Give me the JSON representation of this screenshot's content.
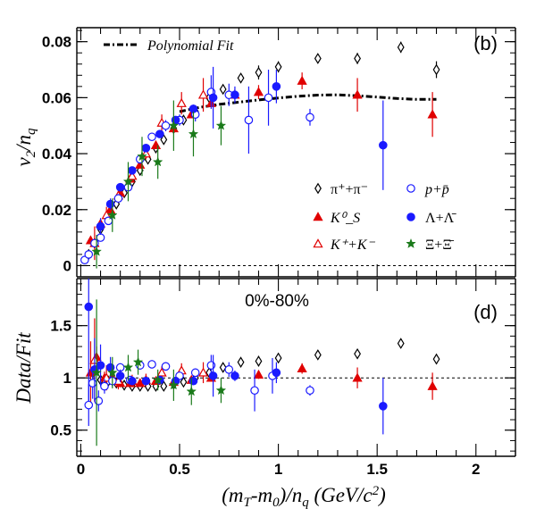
{
  "chart_data": [
    {
      "type": "scatter",
      "panel_label": "(b)",
      "ylabel": "v₂/n_q",
      "xlim": [
        -0.02,
        2.2
      ],
      "ylim": [
        -0.004,
        0.085
      ],
      "y_ticks": [
        0,
        0.02,
        0.04,
        0.06,
        0.08
      ],
      "y_tick_labels": [
        "0",
        "0.02",
        "0.04",
        "0.06",
        "0.08"
      ],
      "reference_line": 0,
      "fit": {
        "name": "Polynomial Fit",
        "x": [
          0.5,
          0.6,
          0.7,
          0.8,
          0.9,
          1.0,
          1.1,
          1.2,
          1.3,
          1.4,
          1.5,
          1.6,
          1.7,
          1.8
        ],
        "y": [
          0.055,
          0.0565,
          0.0576,
          0.0584,
          0.0592,
          0.0599,
          0.0605,
          0.0609,
          0.061,
          0.0607,
          0.0602,
          0.0597,
          0.0594,
          0.0594
        ]
      },
      "legend": {
        "position": "center-right",
        "entries": [
          {
            "label": "π⁺+π⁻",
            "marker": "open-diamond",
            "color": "#000000"
          },
          {
            "label": "p+p̄",
            "marker": "open-circle",
            "color": "#1a1aff"
          },
          {
            "label": "K⁰_S",
            "marker": "filled-triangle",
            "color": "#e00000"
          },
          {
            "label": "Λ+Λ̄",
            "marker": "filled-circle",
            "color": "#1a1aff"
          },
          {
            "label": "K⁺+K⁻",
            "marker": "open-triangle",
            "color": "#e00000"
          },
          {
            "label": "Ξ+Ξ̄",
            "marker": "star",
            "color": "#1a7a1a"
          }
        ]
      },
      "series": [
        {
          "marker": "open-diamond",
          "color": "#000000",
          "x": [
            0.04,
            0.07,
            0.1,
            0.14,
            0.18,
            0.22,
            0.26,
            0.3,
            0.34,
            0.38,
            0.42,
            0.47,
            0.52,
            0.58,
            0.65,
            0.72,
            0.81,
            0.9,
            1.0,
            1.2,
            1.4,
            1.62,
            1.8
          ],
          "y": [
            0.004,
            0.008,
            0.013,
            0.018,
            0.022,
            0.026,
            0.03,
            0.034,
            0.038,
            0.042,
            0.045,
            0.049,
            0.052,
            0.055,
            0.06,
            0.063,
            0.067,
            0.069,
            0.071,
            0.074,
            0.074,
            0.078,
            0.07
          ],
          "err": [
            0.0003,
            0.0003,
            0.0003,
            0.0003,
            0.0003,
            0.0003,
            0.0003,
            0.0004,
            0.0004,
            0.0004,
            0.0005,
            0.0005,
            0.0006,
            0.0007,
            0.0008,
            0.001,
            0.0015,
            0.0025,
            0.002,
            0.0015,
            0.002,
            0.002,
            0.003
          ]
        },
        {
          "marker": "filled-triangle",
          "color": "#e00000",
          "x": [
            0.05,
            0.1,
            0.15,
            0.2,
            0.25,
            0.3,
            0.38,
            0.47,
            0.56,
            0.66,
            0.78,
            0.9,
            1.12,
            1.4,
            1.78
          ],
          "y": [
            0.009,
            0.015,
            0.02,
            0.026,
            0.031,
            0.036,
            0.043,
            0.049,
            0.054,
            0.058,
            0.061,
            0.062,
            0.066,
            0.061,
            0.054
          ],
          "err": [
            0.0015,
            0.001,
            0.0008,
            0.0008,
            0.0008,
            0.0008,
            0.0008,
            0.001,
            0.0012,
            0.0015,
            0.002,
            0.0025,
            0.003,
            0.006,
            0.008
          ]
        },
        {
          "marker": "open-triangle",
          "color": "#e00000",
          "x": [
            0.07,
            0.13,
            0.19,
            0.26,
            0.33,
            0.41,
            0.51,
            0.62
          ],
          "y": [
            0.008,
            0.018,
            0.025,
            0.032,
            0.04,
            0.051,
            0.058,
            0.061
          ],
          "err": [
            0.006,
            0.003,
            0.0025,
            0.002,
            0.002,
            0.003,
            0.004,
            0.006
          ]
        },
        {
          "marker": "open-circle",
          "color": "#1a1aff",
          "x": [
            0.02,
            0.04,
            0.07,
            0.1,
            0.14,
            0.19,
            0.24,
            0.3,
            0.36,
            0.43,
            0.5,
            0.58,
            0.66,
            0.75,
            0.85,
            0.95,
            1.16
          ],
          "y": [
            0.002,
            0.004,
            0.008,
            0.01,
            0.016,
            0.024,
            0.028,
            0.038,
            0.046,
            0.05,
            0.052,
            0.054,
            0.062,
            0.061,
            0.052,
            0.06,
            0.053
          ],
          "err": [
            0.0005,
            0.0005,
            0.0008,
            0.001,
            0.001,
            0.001,
            0.0012,
            0.0015,
            0.0015,
            0.002,
            0.002,
            0.0025,
            0.006,
            0.004,
            0.012,
            0.01,
            0.003
          ]
        },
        {
          "marker": "filled-circle",
          "color": "#1a1aff",
          "x": [
            0.1,
            0.15,
            0.2,
            0.26,
            0.33,
            0.4,
            0.48,
            0.57,
            0.67,
            0.78,
            0.99,
            1.53
          ],
          "y": [
            0.014,
            0.022,
            0.028,
            0.034,
            0.042,
            0.047,
            0.052,
            0.056,
            0.06,
            0.061,
            0.064,
            0.043
          ],
          "err": [
            0.003,
            0.002,
            0.0015,
            0.0012,
            0.001,
            0.001,
            0.0012,
            0.0015,
            0.011,
            0.003,
            0.006,
            0.016
          ]
        },
        {
          "marker": "star",
          "color": "#1a7a1a",
          "x": [
            0.08,
            0.16,
            0.24,
            0.31,
            0.39,
            0.47,
            0.57,
            0.71
          ],
          "y": [
            0.005,
            0.018,
            0.03,
            0.039,
            0.037,
            0.05,
            0.047,
            0.05
          ],
          "err": [
            0.006,
            0.006,
            0.007,
            0.007,
            0.006,
            0.009,
            0.008,
            0.007
          ]
        }
      ]
    },
    {
      "type": "scatter",
      "panel_label": "(d)",
      "annotation": "0%-80%",
      "xlabel": "(m_T-m₀)/n_q (GeV/c²)",
      "ylabel": "Data/Fit",
      "xlim": [
        -0.02,
        2.2
      ],
      "ylim": [
        0.25,
        1.95
      ],
      "x_ticks": [
        0,
        0.5,
        1,
        1.5,
        2
      ],
      "x_tick_labels": [
        "0",
        "0.5",
        "1",
        "1.5",
        "2"
      ],
      "y_ticks": [
        0.5,
        1,
        1.5
      ],
      "y_tick_labels": [
        "0.5",
        "1",
        "1.5"
      ],
      "reference_line": 1,
      "series": [
        {
          "marker": "open-diamond",
          "color": "#000000",
          "x": [
            0.06,
            0.1,
            0.14,
            0.18,
            0.22,
            0.26,
            0.3,
            0.34,
            0.38,
            0.42,
            0.47,
            0.52,
            0.58,
            0.65,
            0.72,
            0.81,
            0.9,
            1.0,
            1.2,
            1.4,
            1.62,
            1.8
          ],
          "y": [
            1.05,
            0.98,
            0.97,
            0.95,
            0.93,
            0.92,
            0.92,
            0.92,
            0.92,
            0.92,
            0.94,
            0.96,
            1.0,
            1.05,
            1.1,
            1.15,
            1.16,
            1.19,
            1.22,
            1.23,
            1.33,
            1.18
          ],
          "err": [
            0.02,
            0.02,
            0.02,
            0.02,
            0.02,
            0.02,
            0.02,
            0.02,
            0.02,
            0.02,
            0.02,
            0.02,
            0.02,
            0.02,
            0.03,
            0.03,
            0.05,
            0.04,
            0.03,
            0.04,
            0.04,
            0.05
          ]
        },
        {
          "marker": "filled-triangle",
          "color": "#e00000",
          "x": [
            0.05,
            0.08,
            0.12,
            0.16,
            0.2,
            0.25,
            0.3,
            0.38,
            0.47,
            0.56,
            0.66,
            0.9,
            1.12,
            1.4,
            1.78
          ],
          "y": [
            1.05,
            1.2,
            1.0,
            1.0,
            0.95,
            0.95,
            0.95,
            0.97,
            0.96,
            0.98,
            1.0,
            1.03,
            1.09,
            1.0,
            0.92
          ],
          "err": [
            0.3,
            0.1,
            0.06,
            0.05,
            0.04,
            0.03,
            0.03,
            0.03,
            0.03,
            0.03,
            0.03,
            0.04,
            0.05,
            0.1,
            0.13
          ]
        },
        {
          "marker": "open-triangle",
          "color": "#e00000",
          "x": [
            0.07,
            0.13,
            0.19,
            0.26,
            0.33,
            0.41,
            0.51,
            0.62
          ],
          "y": [
            1.17,
            1.0,
            0.97,
            0.97,
            0.98,
            1.05,
            1.07,
            1.05
          ],
          "err": [
            0.4,
            0.12,
            0.08,
            0.06,
            0.06,
            0.06,
            0.07,
            0.1
          ]
        },
        {
          "marker": "open-circle",
          "color": "#1a1aff",
          "x": [
            0.04,
            0.06,
            0.09,
            0.12,
            0.16,
            0.2,
            0.25,
            0.3,
            0.36,
            0.43,
            0.5,
            0.58,
            0.66,
            0.75,
            0.88,
            0.97,
            1.16
          ],
          "y": [
            0.74,
            0.95,
            0.78,
            0.92,
            0.97,
            1.1,
            0.98,
            1.12,
            1.13,
            1.11,
            1.02,
            1.05,
            1.12,
            1.08,
            0.88,
            1.02,
            0.88
          ],
          "err": [
            0.2,
            0.15,
            0.1,
            0.07,
            0.05,
            0.04,
            0.04,
            0.04,
            0.04,
            0.04,
            0.04,
            0.04,
            0.1,
            0.07,
            0.2,
            0.17,
            0.05
          ]
        },
        {
          "marker": "filled-circle",
          "color": "#1a1aff",
          "x": [
            0.04,
            0.07,
            0.1,
            0.15,
            0.2,
            0.26,
            0.33,
            0.4,
            0.48,
            0.57,
            0.67,
            0.78,
            0.99,
            1.53
          ],
          "y": [
            1.68,
            1.08,
            1.12,
            1.1,
            1.02,
            0.97,
            0.97,
            0.98,
            0.97,
            0.97,
            1.02,
            1.02,
            1.05,
            0.73
          ],
          "err": [
            0.9,
            0.3,
            0.2,
            0.1,
            0.06,
            0.04,
            0.03,
            0.03,
            0.03,
            0.03,
            0.2,
            0.05,
            0.1,
            0.27
          ]
        },
        {
          "marker": "star",
          "color": "#1a7a1a",
          "x": [
            0.08,
            0.16,
            0.24,
            0.29,
            0.39,
            0.47,
            0.56,
            0.71
          ],
          "y": [
            1.05,
            1.05,
            1.1,
            1.15,
            0.98,
            0.93,
            0.87,
            0.88
          ],
          "err": [
            0.7,
            0.15,
            0.12,
            0.12,
            0.1,
            0.15,
            0.13,
            0.12
          ]
        }
      ]
    }
  ]
}
